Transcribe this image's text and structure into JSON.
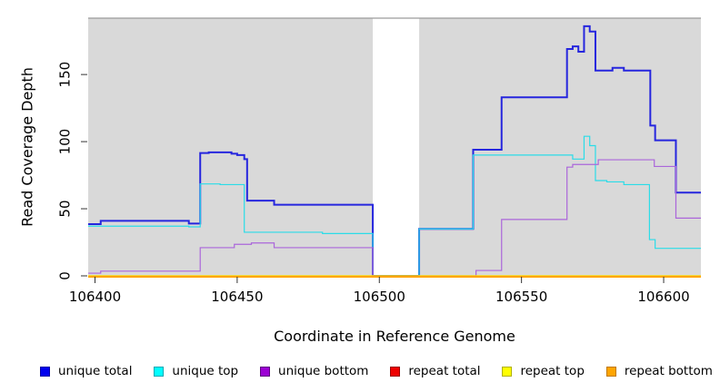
{
  "figure": {
    "xlabel": "Coordinate in Reference Genome",
    "ylabel": "Read Coverage Depth"
  },
  "chart_data": {
    "type": "line",
    "subtype": "step",
    "title": "",
    "xlabel": "Coordinate in Reference Genome",
    "ylabel": "Read Coverage Depth",
    "xlim": [
      106397.6,
      106613.1
    ],
    "ylim": [
      0,
      192
    ],
    "plot_bg": "#d9d9d9",
    "top_border_color": "#9c9c9c",
    "tick_color": "#333333",
    "tick_label_color": "#000000",
    "x_ticks": [
      106400,
      106450,
      106500,
      106550,
      106600
    ],
    "x_tick_labels": [
      "106400",
      "106450",
      "106500",
      "106550",
      "106600"
    ],
    "y_ticks": [
      0,
      50,
      100,
      150
    ],
    "y_tick_labels": [
      "0",
      "50",
      "100",
      "150"
    ],
    "gap_region": {
      "from": 106497.7,
      "to": 106514.0,
      "fill": "#ffffff"
    },
    "series": [
      {
        "name": "unique total",
        "color": "#2626de",
        "width": 2,
        "points": [
          [
            106397.6,
            38.5
          ],
          [
            106402,
            41
          ],
          [
            106433,
            39
          ],
          [
            106437,
            91.5
          ],
          [
            106440,
            92
          ],
          [
            106448,
            91
          ],
          [
            106450,
            90
          ],
          [
            106452.5,
            87
          ],
          [
            106453.5,
            56
          ],
          [
            106463,
            53
          ],
          [
            106497.7,
            0
          ],
          [
            106514,
            35
          ],
          [
            106533,
            94
          ],
          [
            106543,
            133
          ],
          [
            106566,
            169
          ],
          [
            106568,
            171
          ],
          [
            106570,
            167
          ],
          [
            106572,
            186
          ],
          [
            106574,
            182
          ],
          [
            106576,
            153
          ],
          [
            106582,
            155
          ],
          [
            106586,
            153
          ],
          [
            106595.3,
            112
          ],
          [
            106597,
            101
          ],
          [
            106604.3,
            62
          ]
        ]
      },
      {
        "name": "unique top",
        "color": "#2adce8",
        "width": 1.2,
        "points": [
          [
            106397.6,
            37
          ],
          [
            106433,
            36.5
          ],
          [
            106437,
            68.5
          ],
          [
            106444,
            68
          ],
          [
            106452.5,
            32.5
          ],
          [
            106480,
            31.5
          ],
          [
            106497.7,
            0
          ],
          [
            106514,
            35
          ],
          [
            106533,
            90
          ],
          [
            106568,
            87
          ],
          [
            106572,
            104
          ],
          [
            106574,
            97
          ],
          [
            106576,
            71
          ],
          [
            106580,
            70
          ],
          [
            106586,
            68
          ],
          [
            106595,
            27
          ],
          [
            106597,
            20.5
          ]
        ]
      },
      {
        "name": "unique bottom",
        "color": "#ab66da",
        "width": 1.2,
        "points": [
          [
            106397.6,
            2
          ],
          [
            106402,
            3.5
          ],
          [
            106437,
            21
          ],
          [
            106449,
            23.5
          ],
          [
            106455,
            24.5
          ],
          [
            106463,
            21
          ],
          [
            106497.7,
            0
          ],
          [
            106534,
            4
          ],
          [
            106543,
            42
          ],
          [
            106566,
            81
          ],
          [
            106568,
            83
          ],
          [
            106577,
            86.5
          ],
          [
            106596.7,
            81.5
          ],
          [
            106604.3,
            43
          ]
        ]
      },
      {
        "name": "repeat total",
        "color": "#ee0000",
        "width": 1.2,
        "points": [
          [
            106397.6,
            0
          ]
        ]
      },
      {
        "name": "repeat top",
        "color": "#ffff00",
        "width": 1.2,
        "points": [
          [
            106397.6,
            0
          ]
        ]
      },
      {
        "name": "repeat bottom",
        "color": "#ffa500",
        "width": 2,
        "points": [
          [
            106397.6,
            0
          ]
        ]
      }
    ],
    "legend_position": "bottom"
  },
  "legend": {
    "items": [
      {
        "label": "unique total",
        "fill": "#0000ee",
        "border": "#0000a8"
      },
      {
        "label": "unique top",
        "fill": "#00ffff",
        "border": "#00a8b4"
      },
      {
        "label": "unique bottom",
        "fill": "#9c00d4",
        "border": "#5e0080"
      },
      {
        "label": "repeat total",
        "fill": "#ee0000",
        "border": "#990000"
      },
      {
        "label": "repeat top",
        "fill": "#ffff00",
        "border": "#b0b000"
      },
      {
        "label": "repeat bottom",
        "fill": "#ffa500",
        "border": "#c07800"
      }
    ]
  }
}
